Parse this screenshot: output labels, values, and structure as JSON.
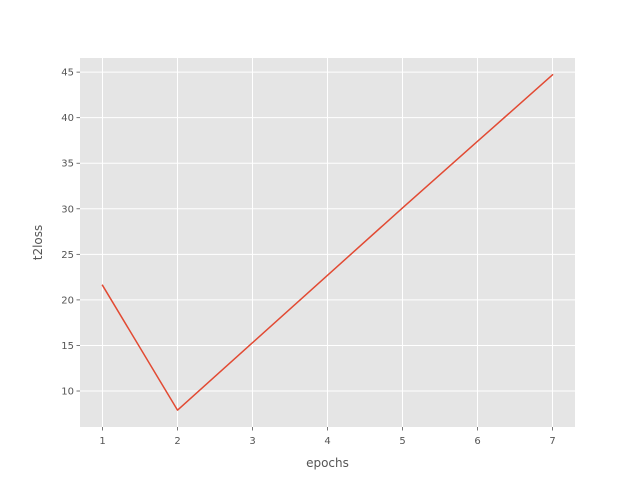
{
  "chart_data": {
    "type": "line",
    "xlabel": "epochs",
    "ylabel": "t2loss",
    "x": [
      1,
      2,
      3,
      4,
      5,
      6,
      7
    ],
    "series": [
      {
        "values": [
          21.6,
          7.9,
          15.3,
          22.7,
          30.1,
          37.4,
          44.7
        ],
        "color": "#E24A33"
      }
    ],
    "xlim": [
      0.7,
      7.3
    ],
    "ylim": [
      6.05,
      46.55
    ],
    "xticks": [
      1,
      2,
      3,
      4,
      5,
      6,
      7
    ],
    "yticks": [
      10,
      15,
      20,
      25,
      30,
      35,
      40,
      45
    ],
    "grid": true,
    "background": "#E5E5E5",
    "grid_color": "#FFFFFF"
  }
}
